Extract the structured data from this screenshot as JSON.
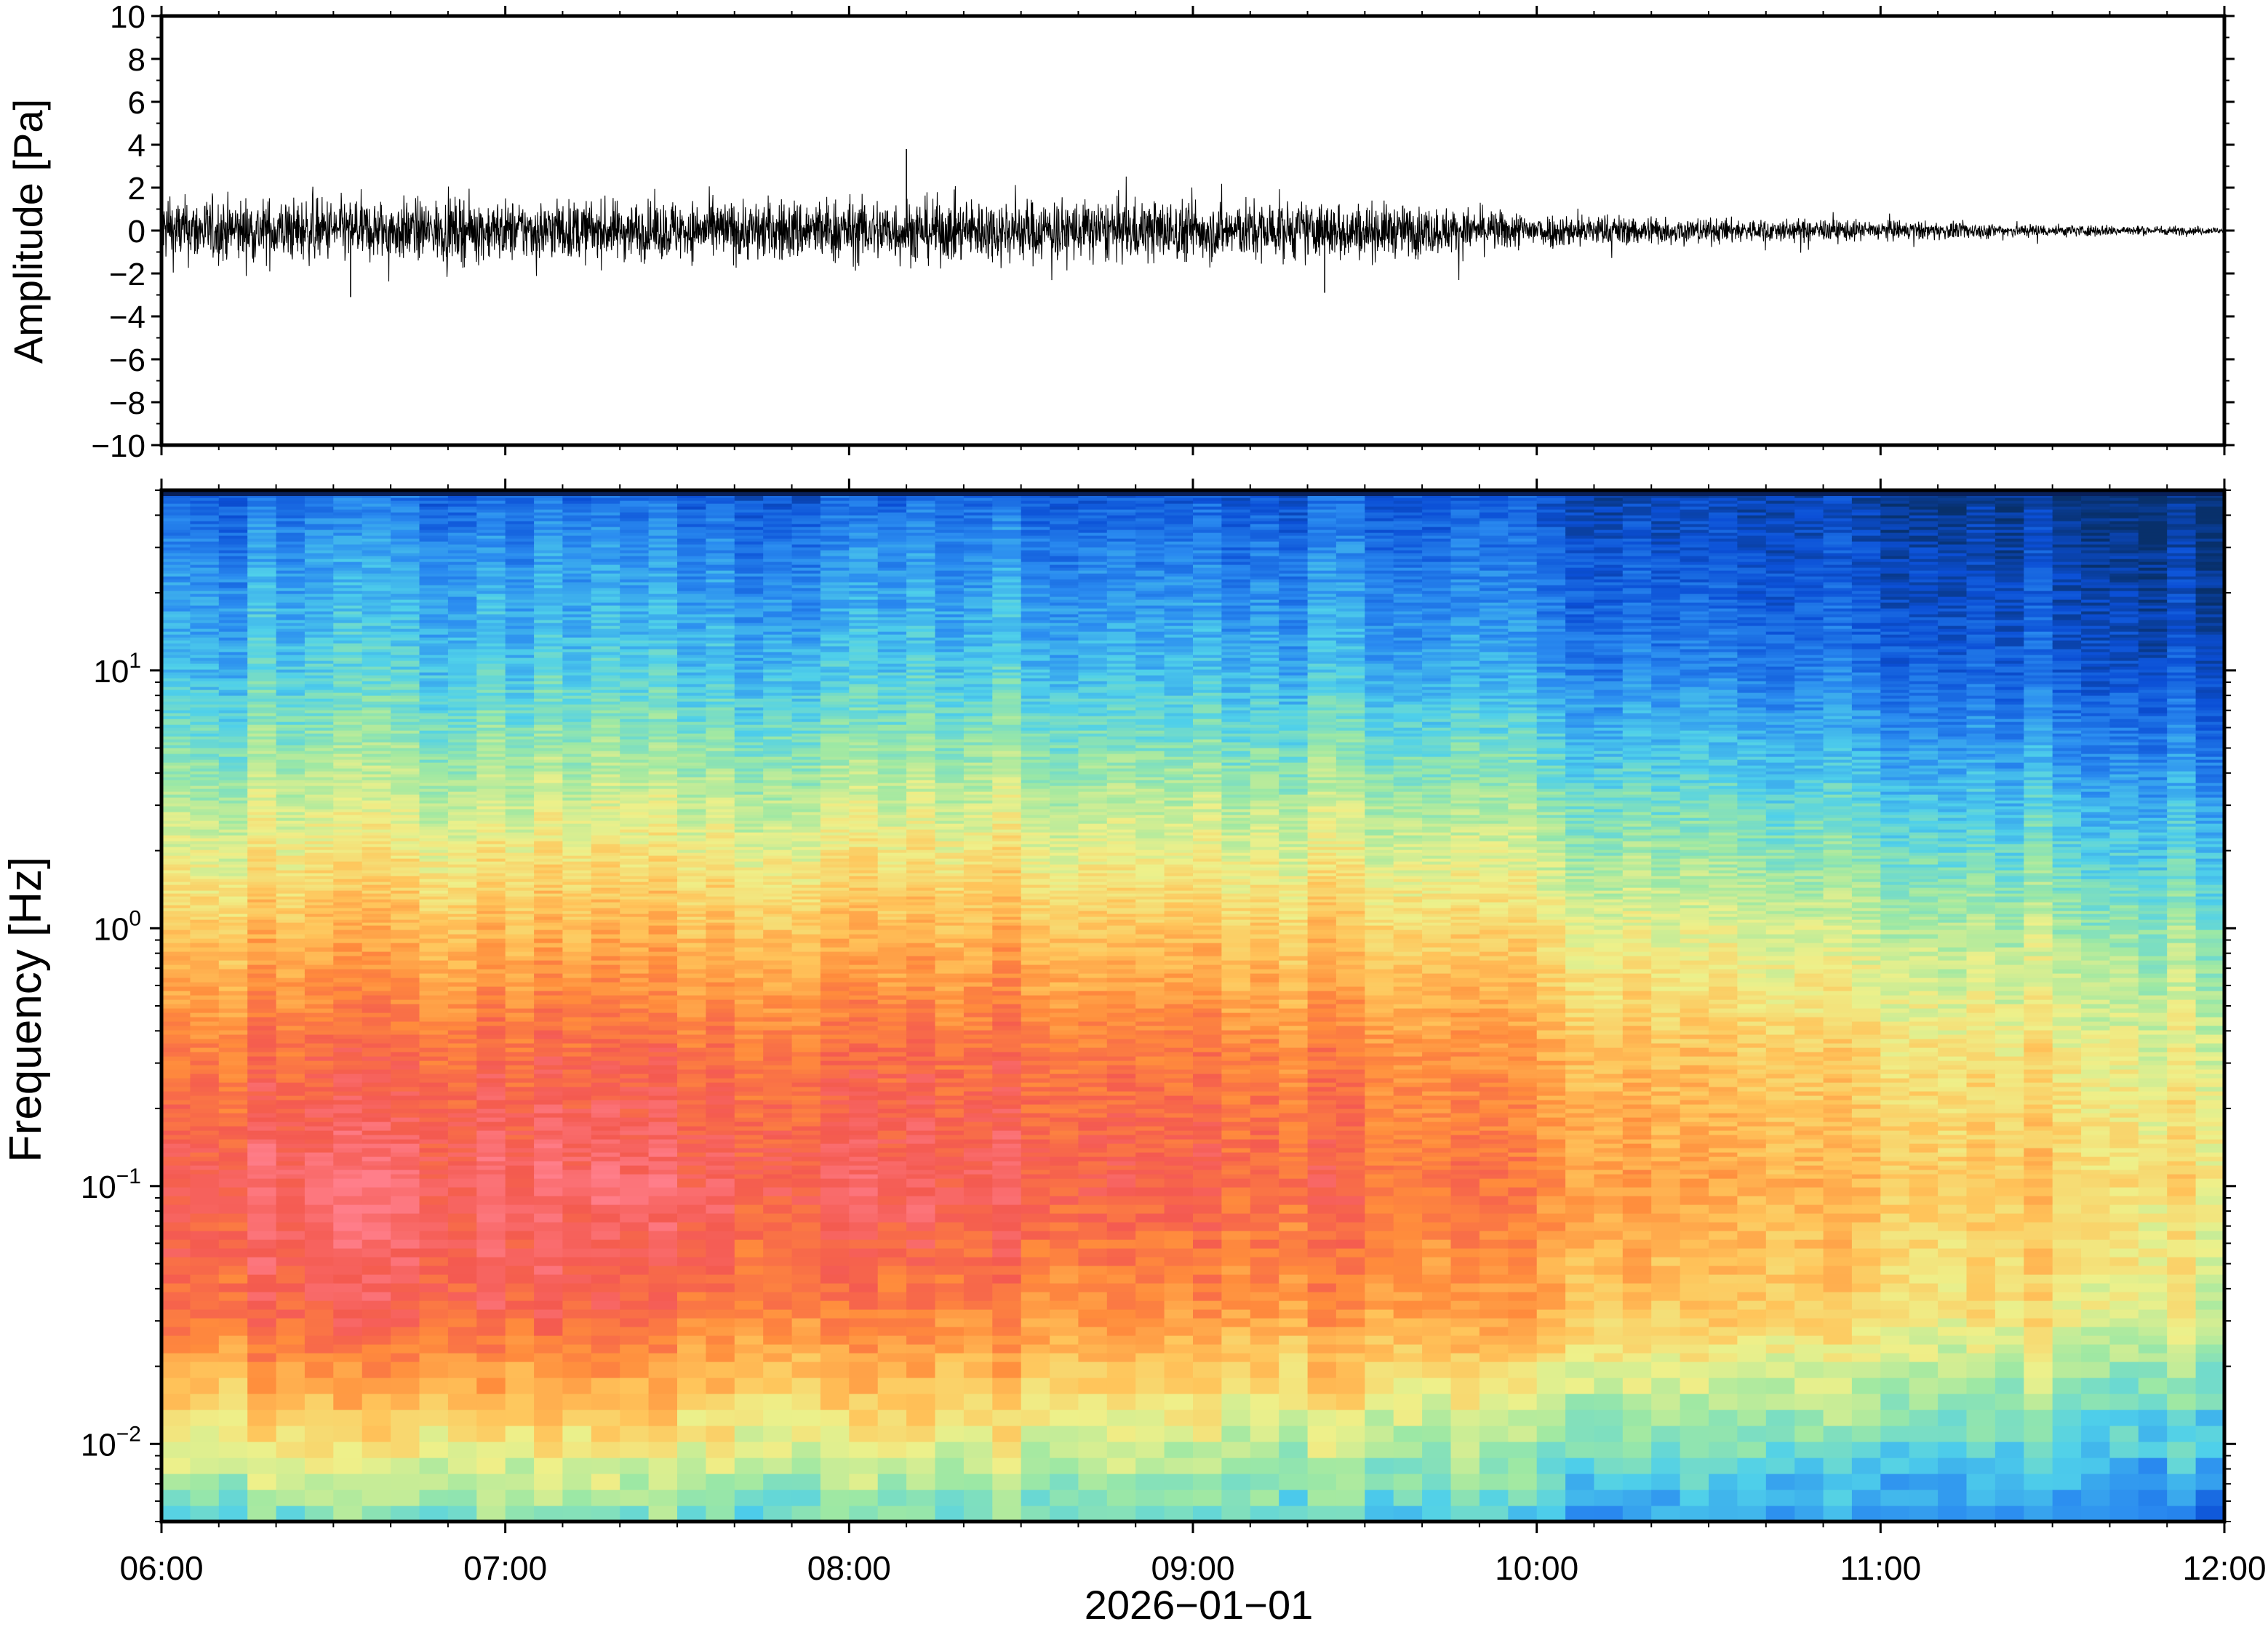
{
  "chart_data": [
    {
      "type": "line",
      "panel": "waveform",
      "title": "",
      "xlabel": "",
      "ylabel": "Amplitude [Pa]",
      "ylim": [
        -10,
        10
      ],
      "yticks": [
        10,
        8,
        6,
        4,
        2,
        0,
        -2,
        -4,
        -6,
        -8,
        -10
      ],
      "ytick_labels": [
        "10",
        "8",
        "6",
        "4",
        "2",
        "0",
        "−2",
        "−4",
        "−6",
        "−8",
        "−10"
      ],
      "x_range": [
        "06:00",
        "12:00"
      ],
      "series": [
        {
          "x_hours": [
            6.0,
            6.5,
            7.0,
            7.5,
            8.0,
            8.5,
            9.0,
            9.5,
            10.0,
            10.5,
            11.0,
            11.5,
            12.0
          ],
          "envelope_pa": [
            2.6,
            2.5,
            2.4,
            2.3,
            2.6,
            2.5,
            2.4,
            2.2,
            1.4,
            1.0,
            0.8,
            0.5,
            0.3
          ],
          "peaks": [
            {
              "time": "08:10",
              "value": 3.8
            },
            {
              "time": "06:33",
              "value": -3.1
            },
            {
              "time": "09:23",
              "value": -2.9
            }
          ]
        }
      ],
      "grid": false
    },
    {
      "type": "heatmap",
      "panel": "spectrogram",
      "title": "",
      "xlabel": "2026−01−01",
      "ylabel": "Frequency [Hz]",
      "y_scale": "log",
      "ylim": [
        0.005,
        50
      ],
      "yticks": [
        0.01,
        0.1,
        1,
        10
      ],
      "ytick_labels": [
        {
          "base": "10",
          "exp": "−2"
        },
        {
          "base": "10",
          "exp": "−1"
        },
        {
          "base": "10",
          "exp": "0"
        },
        {
          "base": "10",
          "exp": "1"
        }
      ],
      "x_ticks": [
        "06:00",
        "07:00",
        "08:00",
        "09:00",
        "10:00",
        "11:00",
        "12:00"
      ],
      "colormap": [
        "#08306b",
        "#0b4fd6",
        "#2a8bf0",
        "#4fd0ea",
        "#9de8a4",
        "#eef08a",
        "#ffc45a",
        "#ff8c3c",
        "#f45a50",
        "#ff7e8a"
      ],
      "time_hours": [
        6,
        7,
        8,
        9,
        10,
        11,
        12
      ],
      "log10_freq": [
        -2.3,
        -2,
        -1.5,
        -1,
        -0.5,
        0,
        0.5,
        1,
        1.5,
        1.7
      ],
      "values": [
        [
          0.4,
          0.42,
          0.4,
          0.41,
          0.3,
          0.25,
          0.22
        ],
        [
          0.58,
          0.6,
          0.57,
          0.55,
          0.45,
          0.4,
          0.35
        ],
        [
          0.85,
          0.88,
          0.8,
          0.78,
          0.7,
          0.62,
          0.55
        ],
        [
          0.92,
          0.94,
          0.92,
          0.9,
          0.78,
          0.68,
          0.62
        ],
        [
          0.82,
          0.85,
          0.84,
          0.84,
          0.72,
          0.62,
          0.56
        ],
        [
          0.66,
          0.68,
          0.68,
          0.68,
          0.58,
          0.5,
          0.44
        ],
        [
          0.48,
          0.5,
          0.5,
          0.5,
          0.42,
          0.34,
          0.28
        ],
        [
          0.32,
          0.33,
          0.32,
          0.32,
          0.24,
          0.18,
          0.12
        ],
        [
          0.22,
          0.22,
          0.21,
          0.21,
          0.14,
          0.09,
          0.05
        ],
        [
          0.15,
          0.15,
          0.14,
          0.14,
          0.1,
          0.05,
          0.03
        ]
      ],
      "grid": false
    }
  ]
}
